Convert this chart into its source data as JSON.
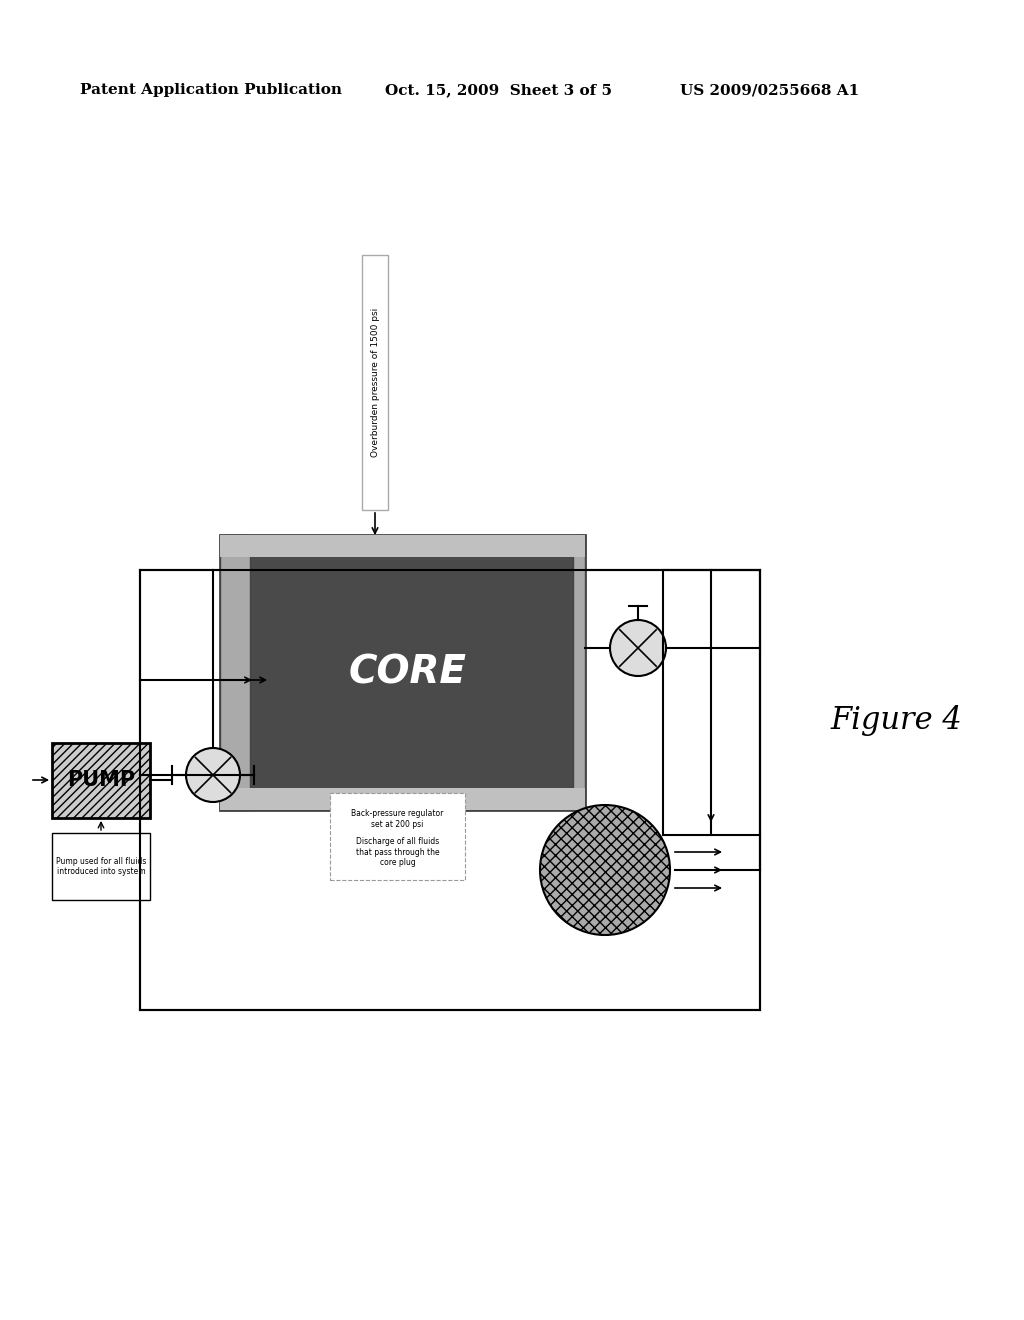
{
  "bg_color": "#ffffff",
  "header_left": "Patent Application Publication",
  "header_mid": "Oct. 15, 2009  Sheet 3 of 5",
  "header_right": "US 2009/0255668 A1",
  "figure_label": "Figure 4",
  "overburden_label": "Overburden pressure of 1500 psi",
  "pump_label": "PUMP",
  "pump_note": "Pump used for all fluids\nintroduced into system",
  "core_label": "CORE",
  "backpressure_label": "Back-pressure regulator\nset at 200 psi",
  "discharge_label": "Discharge of all fluids\nthat pass through the\ncore plug"
}
